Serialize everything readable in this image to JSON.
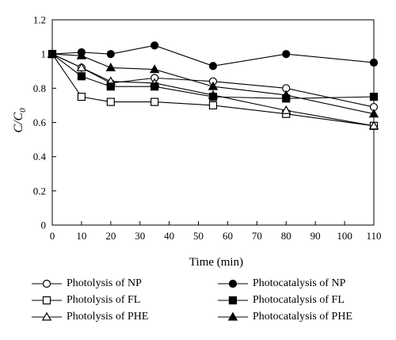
{
  "chart_data": {
    "type": "line",
    "xlabel": "Time (min)",
    "ylabel_main": "C/C",
    "ylabel_sub": "0",
    "xlim": [
      0,
      110
    ],
    "ylim": [
      0,
      1.2
    ],
    "x_ticks": [
      "0",
      "10",
      "20",
      "30",
      "40",
      "50",
      "60",
      "70",
      "80",
      "90",
      "100",
      "110"
    ],
    "y_ticks": [
      "0",
      "0.2",
      "0.4",
      "0.6",
      "0.8",
      "1",
      "1.2"
    ],
    "grid": false,
    "legend_position": "bottom",
    "series": [
      {
        "name": "Photolysis of NP",
        "marker": "circle",
        "fill": "open",
        "x": [
          0,
          10,
          20,
          35,
          55,
          80,
          110
        ],
        "y": [
          1.0,
          0.92,
          0.83,
          0.86,
          0.84,
          0.8,
          0.69
        ]
      },
      {
        "name": "Photolysis of FL",
        "marker": "square",
        "fill": "open",
        "x": [
          0,
          10,
          20,
          35,
          55,
          80,
          110
        ],
        "y": [
          1.0,
          0.75,
          0.72,
          0.72,
          0.7,
          0.65,
          0.58
        ]
      },
      {
        "name": "Photolysis of PHE",
        "marker": "triangle",
        "fill": "open",
        "x": [
          0,
          10,
          20,
          35,
          55,
          80,
          110
        ],
        "y": [
          1.0,
          0.92,
          0.84,
          0.83,
          0.76,
          0.67,
          0.58
        ]
      },
      {
        "name": "Photocatalysis of NP",
        "marker": "circle",
        "fill": "filled",
        "x": [
          0,
          10,
          20,
          35,
          55,
          80,
          110
        ],
        "y": [
          1.0,
          1.01,
          1.0,
          1.05,
          0.93,
          1.0,
          0.95
        ]
      },
      {
        "name": "Photocatalysis of FL",
        "marker": "square",
        "fill": "filled",
        "x": [
          0,
          10,
          20,
          35,
          55,
          80,
          110
        ],
        "y": [
          1.0,
          0.87,
          0.81,
          0.81,
          0.75,
          0.74,
          0.75
        ]
      },
      {
        "name": "Photocatalysis of PHE",
        "marker": "triangle",
        "fill": "filled",
        "x": [
          0,
          10,
          20,
          35,
          55,
          80,
          110
        ],
        "y": [
          1.0,
          0.99,
          0.92,
          0.91,
          0.81,
          0.76,
          0.65
        ]
      }
    ]
  }
}
